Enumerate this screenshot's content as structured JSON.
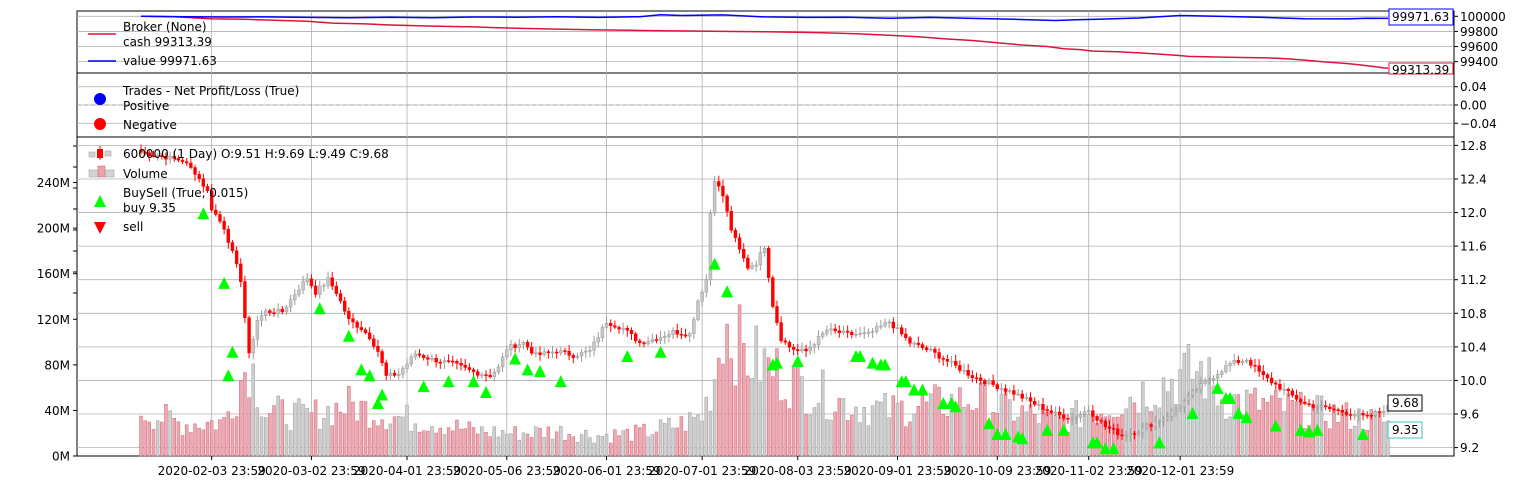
{
  "chart_data": [
    {
      "type": "line",
      "panel": "broker",
      "legend": {
        "title": "Broker (None)",
        "items": [
          "cash 99313.39",
          "value 99971.63"
        ]
      },
      "yticks": [
        "100000",
        "99800",
        "99600",
        "99400"
      ],
      "ylim": [
        99250,
        100070
      ],
      "series": [
        {
          "name": "cash",
          "color": "#dc143c",
          "x": [
            0,
            8,
            17,
            25,
            34,
            40,
            46,
            54,
            60,
            70,
            80,
            85,
            92,
            100,
            110,
            118,
            125,
            132,
            140,
            150,
            158,
            165,
            172,
            180,
            187,
            194,
            200,
            206,
            212,
            218,
            222,
            226,
            229,
            235,
            239,
            245,
            249,
            252,
            256,
            260,
            265,
            271,
            275,
            280,
            285,
            290,
            293,
            296,
            299,
            300
          ],
          "values": [
            100000,
            99995,
            99965,
            99960,
            99945,
            99935,
            99910,
            99900,
            99885,
            99870,
            99860,
            99850,
            99840,
            99830,
            99820,
            99815,
            99810,
            99805,
            99800,
            99795,
            99790,
            99780,
            99770,
            99750,
            99730,
            99700,
            99680,
            99650,
            99620,
            99600,
            99570,
            99560,
            99540,
            99530,
            99520,
            99500,
            99485,
            99470,
            99465,
            99460,
            99455,
            99450,
            99440,
            99420,
            99395,
            99375,
            99360,
            99340,
            99318,
            99313.39
          ]
        },
        {
          "name": "value",
          "color": "#0000ff",
          "x": [
            0,
            10,
            20,
            30,
            40,
            50,
            60,
            70,
            80,
            90,
            100,
            110,
            120,
            125,
            130,
            140,
            150,
            160,
            170,
            180,
            190,
            200,
            210,
            220,
            225,
            230,
            240,
            250,
            260,
            270,
            280,
            290,
            295,
            300
          ],
          "values": [
            100000,
            99995,
            99990,
            99992,
            99985,
            99980,
            99988,
            99982,
            99990,
            99988,
            99995,
            99985,
            99995,
            100020,
            100010,
            100018,
            99992,
            99985,
            99988,
            99975,
            99985,
            99972,
            99960,
            99945,
            99955,
            99960,
            99978,
            100010,
            99998,
            99985,
            99968,
            99965,
            99975,
            99971.63
          ]
        }
      ],
      "last_labels": [
        "99971.63",
        "99313.39"
      ]
    },
    {
      "type": "scatter",
      "panel": "trades",
      "legend": {
        "title": "Trades - Net Profit/Loss (True)",
        "items": [
          "Positive",
          "Negative"
        ]
      },
      "yticks": [
        "0.04",
        "0.00",
        "−0.04"
      ],
      "ylim": [
        -0.07,
        0.07
      ],
      "points": []
    },
    {
      "type": "candlestick",
      "panel": "price",
      "legend": {
        "items": [
          "600000 (1 Day) O:9.51 H:9.69 L:9.49 C:9.68",
          "Volume",
          "BuySell (True, 0.015)",
          "buy 9.35",
          "sell"
        ]
      },
      "x_tick_labels": [
        "2020-02-03 23:59",
        "2020-03-02 23:59",
        "2020-04-01 23:59",
        "2020-05-06 23:59",
        "2020-06-01 23:59",
        "2020-07-01 23:59",
        "2020-08-03 23:59",
        "2020-09-01 23:59",
        "2020-10-09 23:59",
        "2020-11-02 23:59",
        "2020-12-01 23:59"
      ],
      "x_tick_index": [
        17,
        41,
        64,
        88,
        112,
        135,
        158,
        182,
        206,
        228,
        250
      ],
      "price_yticks": [
        "12.8",
        "12.4",
        "12.0",
        "11.6",
        "11.2",
        "10.8",
        "10.4",
        "10.0",
        "9.6",
        "9.2"
      ],
      "price_ylim": [
        9.1,
        12.9
      ],
      "volume_yticks": [
        "240M",
        "200M",
        "160M",
        "120M",
        "80M",
        "40M",
        "0M"
      ],
      "volume_ylim": [
        0,
        280
      ],
      "close_anchors": {
        "index": [
          0,
          10,
          13,
          16,
          17,
          20,
          22,
          24,
          26,
          28,
          30,
          34,
          38,
          40,
          42,
          45,
          47,
          50,
          53,
          55,
          57,
          59,
          62,
          66,
          70,
          75,
          80,
          84,
          86,
          88,
          90,
          92,
          95,
          100,
          104,
          108,
          112,
          116,
          120,
          124,
          128,
          132,
          134,
          136,
          137,
          138,
          140,
          142,
          144,
          146,
          148,
          150,
          152,
          154,
          156,
          158,
          160,
          165,
          170,
          175,
          180,
          185,
          190,
          195,
          200,
          205,
          210,
          215,
          220,
          224,
          228,
          232,
          236,
          240,
          243,
          246,
          250,
          254,
          258,
          262,
          266,
          270,
          276,
          280,
          284,
          290,
          295,
          300
        ],
        "close": [
          12.72,
          12.62,
          12.48,
          12.25,
          12.05,
          11.82,
          11.52,
          11.2,
          10.3,
          10.72,
          10.82,
          10.82,
          11.1,
          11.22,
          11.05,
          11.2,
          11.05,
          10.72,
          10.62,
          10.52,
          10.35,
          10.05,
          10.08,
          10.32,
          10.25,
          10.2,
          10.1,
          10.06,
          10.15,
          10.38,
          10.42,
          10.45,
          10.3,
          10.35,
          10.3,
          10.35,
          10.7,
          10.62,
          10.45,
          10.5,
          10.58,
          10.55,
          10.95,
          11.2,
          12.0,
          12.4,
          12.2,
          11.8,
          11.55,
          11.35,
          11.4,
          11.6,
          10.9,
          10.5,
          10.4,
          10.35,
          10.35,
          10.6,
          10.55,
          10.55,
          10.7,
          10.45,
          10.35,
          10.2,
          10.05,
          9.95,
          9.85,
          9.72,
          9.6,
          9.55,
          9.65,
          9.45,
          9.35,
          9.4,
          9.48,
          9.55,
          9.7,
          9.9,
          10.05,
          10.2,
          10.25,
          10.05,
          9.85,
          9.72,
          9.68,
          9.62,
          9.56,
          9.68
        ]
      },
      "volume_anchors": {
        "index": [
          0,
          10,
          20,
          26,
          30,
          40,
          50,
          60,
          70,
          80,
          90,
          100,
          110,
          120,
          130,
          135,
          138,
          140,
          145,
          150,
          155,
          160,
          170,
          180,
          190,
          200,
          210,
          220,
          230,
          240,
          250,
          255,
          260,
          270,
          280,
          290,
          300
        ],
        "volume": [
          40,
          28,
          30,
          85,
          40,
          35,
          45,
          35,
          30,
          22,
          20,
          22,
          18,
          20,
          28,
          35,
          70,
          120,
          90,
          80,
          70,
          60,
          45,
          40,
          45,
          50,
          40,
          30,
          40,
          55,
          70,
          75,
          50,
          45,
          40,
          35,
          30
        ]
      },
      "buy_markers": [
        {
          "i": 15,
          "p": 11.98
        },
        {
          "i": 20,
          "p": 11.15
        },
        {
          "i": 21,
          "p": 10.05
        },
        {
          "i": 22,
          "p": 10.33
        },
        {
          "i": 43,
          "p": 10.85
        },
        {
          "i": 50,
          "p": 10.52
        },
        {
          "i": 53,
          "p": 10.12
        },
        {
          "i": 55,
          "p": 10.05
        },
        {
          "i": 57,
          "p": 9.72
        },
        {
          "i": 58,
          "p": 9.82
        },
        {
          "i": 68,
          "p": 9.92
        },
        {
          "i": 74,
          "p": 9.98
        },
        {
          "i": 80,
          "p": 9.98
        },
        {
          "i": 83,
          "p": 9.85
        },
        {
          "i": 90,
          "p": 10.25
        },
        {
          "i": 93,
          "p": 10.12
        },
        {
          "i": 96,
          "p": 10.1
        },
        {
          "i": 101,
          "p": 9.98
        },
        {
          "i": 117,
          "p": 10.28
        },
        {
          "i": 125,
          "p": 10.33
        },
        {
          "i": 138,
          "p": 11.38
        },
        {
          "i": 141,
          "p": 11.05
        },
        {
          "i": 152,
          "p": 10.18
        },
        {
          "i": 153,
          "p": 10.2
        },
        {
          "i": 158,
          "p": 10.22
        },
        {
          "i": 172,
          "p": 10.28
        },
        {
          "i": 173,
          "p": 10.28
        },
        {
          "i": 176,
          "p": 10.2
        },
        {
          "i": 178,
          "p": 10.18
        },
        {
          "i": 179,
          "p": 10.18
        },
        {
          "i": 183,
          "p": 9.98
        },
        {
          "i": 184,
          "p": 9.98
        },
        {
          "i": 186,
          "p": 9.88
        },
        {
          "i": 188,
          "p": 9.88
        },
        {
          "i": 193,
          "p": 9.72
        },
        {
          "i": 195,
          "p": 9.72
        },
        {
          "i": 196,
          "p": 9.68
        },
        {
          "i": 204,
          "p": 9.48
        },
        {
          "i": 206,
          "p": 9.35
        },
        {
          "i": 208,
          "p": 9.35
        },
        {
          "i": 211,
          "p": 9.32
        },
        {
          "i": 212,
          "p": 9.3
        },
        {
          "i": 218,
          "p": 9.4
        },
        {
          "i": 222,
          "p": 9.4
        },
        {
          "i": 229,
          "p": 9.25
        },
        {
          "i": 230,
          "p": 9.25
        },
        {
          "i": 232,
          "p": 9.18
        },
        {
          "i": 234,
          "p": 9.18
        },
        {
          "i": 245,
          "p": 9.25
        },
        {
          "i": 253,
          "p": 9.6
        },
        {
          "i": 259,
          "p": 9.9
        },
        {
          "i": 261,
          "p": 9.78
        },
        {
          "i": 262,
          "p": 9.78
        },
        {
          "i": 264,
          "p": 9.6
        },
        {
          "i": 266,
          "p": 9.55
        },
        {
          "i": 273,
          "p": 9.45
        },
        {
          "i": 279,
          "p": 9.4
        },
        {
          "i": 281,
          "p": 9.38
        },
        {
          "i": 283,
          "p": 9.4
        },
        {
          "i": 294,
          "p": 9.35
        }
      ],
      "last_price_label": "9.68",
      "last_buy_label": "9.35"
    }
  ]
}
